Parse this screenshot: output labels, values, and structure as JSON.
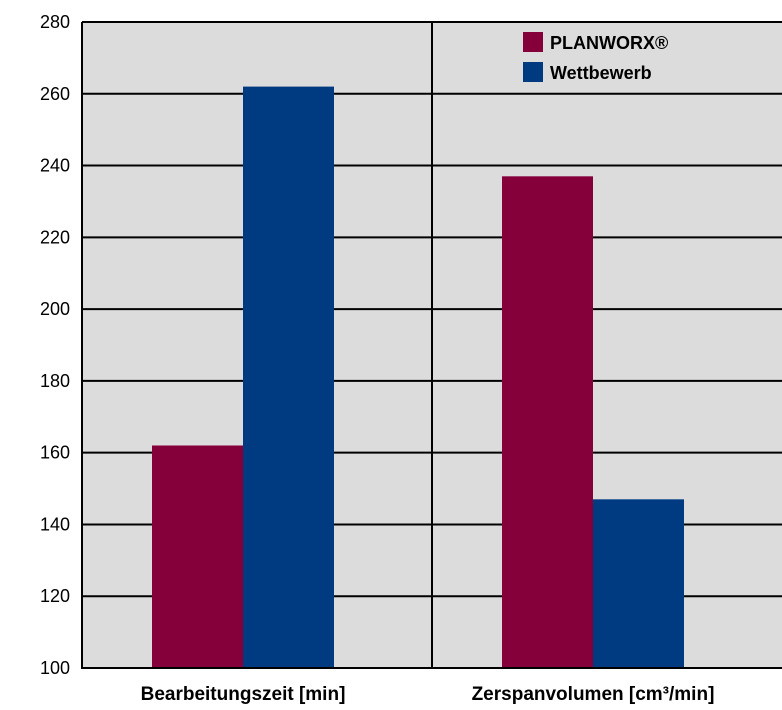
{
  "chart_data": {
    "type": "bar",
    "categories": [
      "Bearbeitungszeit [min]",
      "Zerspanvolumen [cm³/min]"
    ],
    "series": [
      {
        "name": "PLANWORX®",
        "color": "#85003a",
        "values": [
          162,
          237
        ]
      },
      {
        "name": "Wettbewerb",
        "color": "#003a80",
        "values": [
          262,
          147
        ]
      }
    ],
    "ylim": [
      100,
      280
    ],
    "yticks": [
      100,
      120,
      140,
      160,
      180,
      200,
      220,
      240,
      260,
      280
    ],
    "grid": true,
    "legend": "top-right",
    "background": "#dcdcdc"
  }
}
